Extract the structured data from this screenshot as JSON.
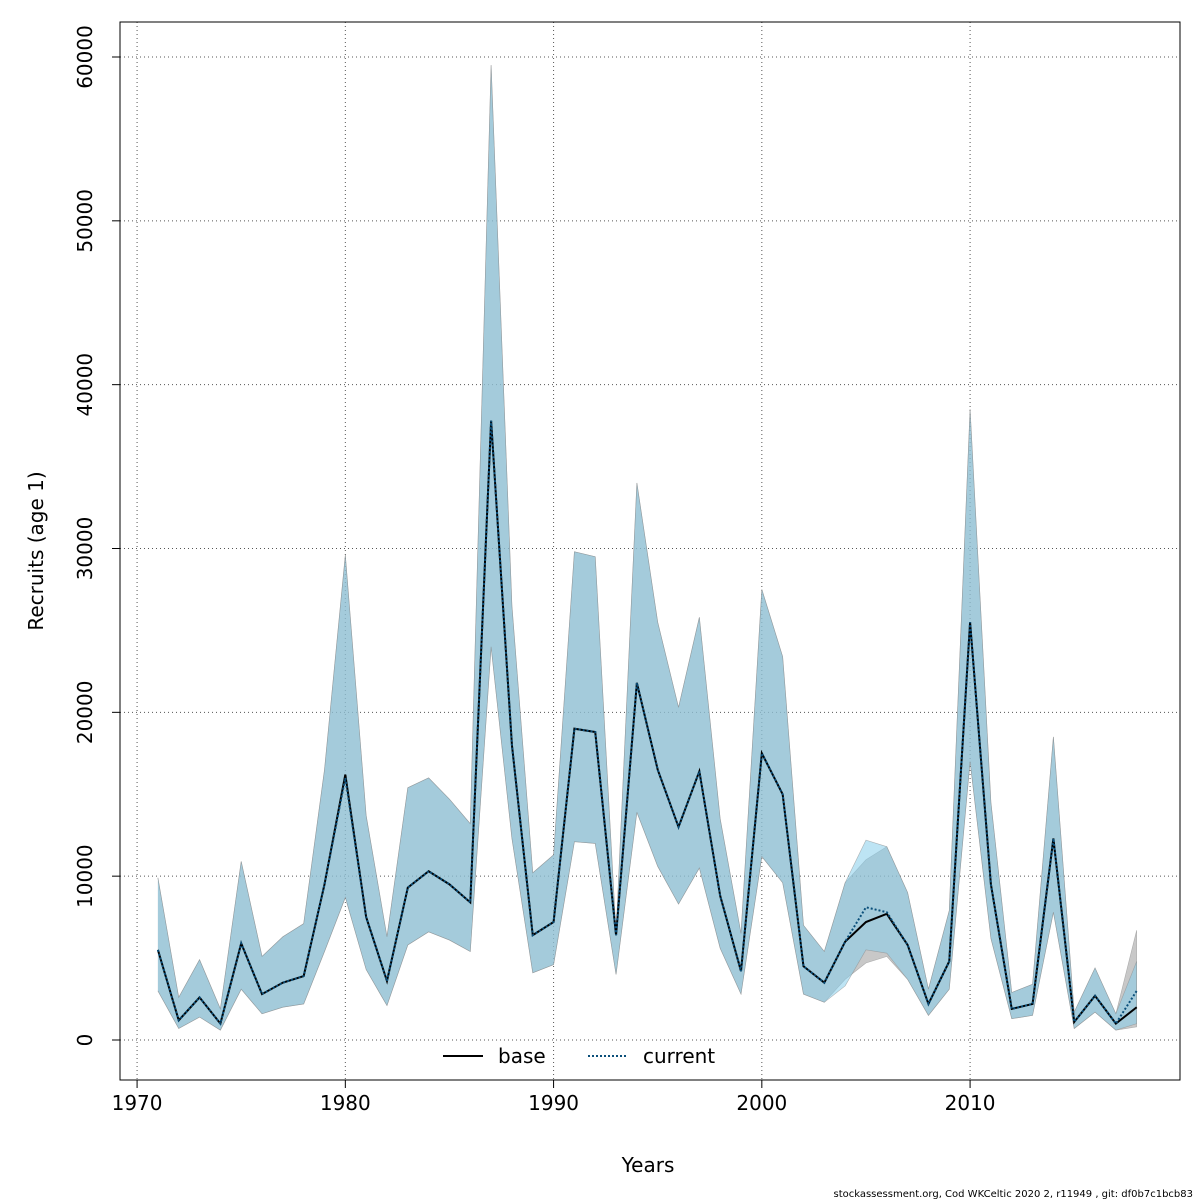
{
  "chart_data": {
    "type": "line",
    "xlabel": "Years",
    "ylabel": "Recruits (age 1)",
    "footer": "stockassessment.org, Cod WKCeltic 2020 2, r11949 , git: df0b7c1bcb83",
    "x": [
      1971,
      1972,
      1973,
      1974,
      1975,
      1976,
      1977,
      1978,
      1979,
      1980,
      1981,
      1982,
      1983,
      1984,
      1985,
      1986,
      1987,
      1988,
      1989,
      1990,
      1991,
      1992,
      1993,
      1994,
      1995,
      1996,
      1997,
      1998,
      1999,
      2000,
      2001,
      2002,
      2003,
      2004,
      2005,
      2006,
      2007,
      2008,
      2009,
      2010,
      2011,
      2012,
      2013,
      2014,
      2015,
      2016,
      2017,
      2018
    ],
    "series": [
      {
        "name": "base",
        "color": "#000000",
        "band_color": "#9a9a9a",
        "dash": false,
        "values": [
          5500,
          1200,
          2600,
          1000,
          5900,
          2800,
          3500,
          3900,
          9500,
          16200,
          7500,
          3600,
          9300,
          10300,
          9500,
          8400,
          37800,
          18000,
          6400,
          7200,
          19000,
          18800,
          6400,
          21800,
          16500,
          13000,
          16400,
          8800,
          4200,
          17500,
          15000,
          4500,
          3500,
          6000,
          7200,
          7700,
          5800,
          2200,
          4800,
          25500,
          9500,
          1900,
          2200,
          12300,
          1100,
          2700,
          1000,
          2000
        ],
        "lower": [
          3000,
          700,
          1400,
          600,
          3100,
          1600,
          2000,
          2200,
          5400,
          8700,
          4300,
          2100,
          5800,
          6600,
          6100,
          5400,
          24000,
          12300,
          4100,
          4600,
          12100,
          12000,
          4000,
          13900,
          10600,
          8300,
          10500,
          5600,
          2800,
          11200,
          9600,
          2800,
          2300,
          3700,
          4700,
          5100,
          3700,
          1500,
          3100,
          17000,
          6200,
          1300,
          1500,
          7800,
          700,
          1700,
          600,
          800
        ],
        "upper": [
          9900,
          2600,
          4900,
          1900,
          10900,
          5100,
          6300,
          7100,
          16500,
          29600,
          13700,
          6300,
          15400,
          16000,
          14700,
          13200,
          59500,
          26500,
          10200,
          11300,
          29800,
          29500,
          6500,
          34000,
          25500,
          20300,
          25800,
          13500,
          6500,
          27500,
          23400,
          7000,
          5400,
          9600,
          11000,
          11800,
          9000,
          3100,
          7900,
          38500,
          14500,
          2900,
          3400,
          18500,
          1700,
          4400,
          1600,
          6700
        ]
      },
      {
        "name": "current",
        "color": "#0b4f7a",
        "band_color": "#87ceeb",
        "dash": true,
        "values": [
          5500,
          1200,
          2600,
          1000,
          5900,
          2800,
          3500,
          3900,
          9500,
          16000,
          7500,
          3600,
          9300,
          10300,
          9500,
          8400,
          37800,
          18000,
          6400,
          7200,
          19000,
          18800,
          6400,
          21800,
          16500,
          13000,
          16400,
          8800,
          4200,
          17500,
          15000,
          4500,
          3500,
          6000,
          8100,
          7800,
          5800,
          2200,
          4800,
          25500,
          9500,
          1900,
          2200,
          12300,
          1100,
          2700,
          1000,
          3000
        ],
        "lower": [
          3000,
          700,
          1400,
          600,
          3100,
          1600,
          2000,
          2200,
          5400,
          8700,
          4300,
          2100,
          5800,
          6600,
          6100,
          5400,
          24000,
          12300,
          4100,
          4600,
          12100,
          12000,
          4000,
          13900,
          10600,
          8300,
          10500,
          5600,
          2800,
          11200,
          9600,
          2800,
          2300,
          3300,
          5500,
          5300,
          3700,
          1500,
          3100,
          17000,
          6200,
          1300,
          1500,
          7800,
          700,
          1700,
          600,
          1000
        ],
        "upper": [
          9900,
          2600,
          4900,
          1900,
          10900,
          5100,
          6300,
          7100,
          16500,
          29600,
          13700,
          6300,
          15400,
          16000,
          14700,
          13200,
          59500,
          26500,
          10200,
          11300,
          29800,
          29500,
          6500,
          34000,
          25500,
          20300,
          25800,
          13500,
          6500,
          27500,
          23400,
          7000,
          5400,
          9600,
          12200,
          11800,
          9000,
          3100,
          7900,
          38500,
          14500,
          2900,
          3400,
          18500,
          1700,
          4400,
          1600,
          4800
        ]
      }
    ],
    "xlim": [
      1969.18,
      2020.08
    ],
    "ylim": [
      -2442,
      62136
    ],
    "xticks": [
      1970,
      1980,
      1990,
      2000,
      2010
    ],
    "yticks": [
      0,
      10000,
      20000,
      30000,
      40000,
      50000,
      60000
    ],
    "grid": true,
    "legend": "bottom"
  }
}
